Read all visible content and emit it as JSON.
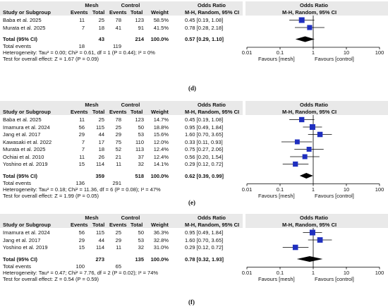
{
  "chart_data": [
    {
      "type": "forest",
      "panel_label": "(d)",
      "col_headers": {
        "group1": "Mesh",
        "group2": "Control",
        "odds_ratio": "Odds Ratio",
        "study": "Study or Subgroup",
        "events": "Events",
        "total": "Total",
        "weight": "Weight",
        "method": "M-H, Random, 95% CI"
      },
      "studies": [
        {
          "name": "Baba et al. 2025",
          "e1": "11",
          "t1": "25",
          "e2": "78",
          "t2": "123",
          "weight": "58.5%",
          "or_text": "0.45 [0.19, 1.08]",
          "or": 0.45,
          "lo": 0.19,
          "hi": 1.08,
          "w": 58.5
        },
        {
          "name": "Murata et al. 2025",
          "e1": "7",
          "t1": "18",
          "e2": "41",
          "t2": "91",
          "weight": "41.5%",
          "or_text": "0.78 [0.28, 2.18]",
          "or": 0.78,
          "lo": 0.28,
          "hi": 2.18,
          "w": 41.5
        }
      ],
      "total": {
        "label": "Total (95% CI)",
        "t1": "43",
        "t2": "214",
        "weight": "100.0%",
        "or_text": "0.57 [0.29, 1.10]",
        "or": 0.57,
        "lo": 0.29,
        "hi": 1.1
      },
      "total_events": {
        "label": "Total events",
        "e1": "18",
        "e2": "119"
      },
      "heterogeneity": "Heterogeneity: Tau² = 0.00; Chi² = 0.61, df = 1 (P = 0.44); I² = 0%",
      "overall_test": "Test for overall effect: Z = 1.67 (P = 0.09)",
      "x_scale": "log",
      "x_ticks": [
        "0.01",
        "0.1",
        "1",
        "10",
        "100"
      ],
      "favours_left": "Favours [mesh]",
      "favours_right": "Favours [control]"
    },
    {
      "type": "forest",
      "panel_label": "(e)",
      "col_headers": {
        "group1": "Mesh",
        "group2": "Control",
        "odds_ratio": "Odds Ratio",
        "study": "Study or Subgroup",
        "events": "Events",
        "total": "Total",
        "weight": "Weight",
        "method": "M-H, Random, 95% CI"
      },
      "studies": [
        {
          "name": "Baba et al. 2025",
          "e1": "11",
          "t1": "25",
          "e2": "78",
          "t2": "123",
          "weight": "14.7%",
          "or_text": "0.45 [0.19, 1.08]",
          "or": 0.45,
          "lo": 0.19,
          "hi": 1.08,
          "w": 14.7
        },
        {
          "name": "Imamura et al. 2024",
          "e1": "56",
          "t1": "115",
          "e2": "25",
          "t2": "50",
          "weight": "18.8%",
          "or_text": "0.95 [0.49, 1.84]",
          "or": 0.95,
          "lo": 0.49,
          "hi": 1.84,
          "w": 18.8
        },
        {
          "name": "Jang et al. 2017",
          "e1": "29",
          "t1": "44",
          "e2": "29",
          "t2": "53",
          "weight": "15.6%",
          "or_text": "1.60 [0.70, 3.65]",
          "or": 1.6,
          "lo": 0.7,
          "hi": 3.65,
          "w": 15.6
        },
        {
          "name": "Kawasaki et al. 2022",
          "e1": "7",
          "t1": "17",
          "e2": "75",
          "t2": "110",
          "weight": "12.0%",
          "or_text": "0.33 [0.11, 0.93]",
          "or": 0.33,
          "lo": 0.11,
          "hi": 0.93,
          "w": 12.0
        },
        {
          "name": "Murata et al. 2025",
          "e1": "7",
          "t1": "18",
          "e2": "52",
          "t2": "113",
          "weight": "12.4%",
          "or_text": "0.75 [0.27, 2.06]",
          "or": 0.75,
          "lo": 0.27,
          "hi": 2.06,
          "w": 12.4
        },
        {
          "name": "Ochiai et al. 2010",
          "e1": "11",
          "t1": "26",
          "e2": "21",
          "t2": "37",
          "weight": "12.4%",
          "or_text": "0.56 [0.20, 1.54]",
          "or": 0.56,
          "lo": 0.2,
          "hi": 1.54,
          "w": 12.4
        },
        {
          "name": "Yoshino et al. 2019",
          "e1": "15",
          "t1": "114",
          "e2": "11",
          "t2": "32",
          "weight": "14.1%",
          "or_text": "0.29 [0.12, 0.72]",
          "or": 0.29,
          "lo": 0.12,
          "hi": 0.72,
          "w": 14.1
        }
      ],
      "total": {
        "label": "Total (95% CI)",
        "t1": "359",
        "t2": "518",
        "weight": "100.0%",
        "or_text": "0.62 [0.39, 0.99]",
        "or": 0.62,
        "lo": 0.39,
        "hi": 0.99
      },
      "total_events": {
        "label": "Total events",
        "e1": "136",
        "e2": "291"
      },
      "heterogeneity": "Heterogeneity: Tau² = 0.18; Chi² = 11.36, df = 6 (P = 0.08); I² = 47%",
      "overall_test": "Test for overall effect: Z = 1.99 (P = 0.05)",
      "x_scale": "log",
      "x_ticks": [
        "0.01",
        "0.1",
        "1",
        "10",
        "100"
      ],
      "favours_left": "Favours [mesh]",
      "favours_right": "Favours [control]"
    },
    {
      "type": "forest",
      "panel_label": "(f)",
      "col_headers": {
        "group1": "Mesh",
        "group2": "Control",
        "odds_ratio": "Odds Ratio",
        "study": "Study or Subgroup",
        "events": "Events",
        "total": "Total",
        "weight": "Weight",
        "method": "M-H, Random, 95% CI"
      },
      "studies": [
        {
          "name": "Imamura et al. 2024",
          "e1": "56",
          "t1": "115",
          "e2": "25",
          "t2": "50",
          "weight": "36.3%",
          "or_text": "0.95 [0.49, 1.84]",
          "or": 0.95,
          "lo": 0.49,
          "hi": 1.84,
          "w": 36.3
        },
        {
          "name": "Jang et al. 2017",
          "e1": "29",
          "t1": "44",
          "e2": "29",
          "t2": "53",
          "weight": "32.8%",
          "or_text": "1.60 [0.70, 3.65]",
          "or": 1.6,
          "lo": 0.7,
          "hi": 3.65,
          "w": 32.8
        },
        {
          "name": "Yoshino et al. 2019",
          "e1": "15",
          "t1": "114",
          "e2": "11",
          "t2": "32",
          "weight": "31.0%",
          "or_text": "0.29 [0.12, 0.72]",
          "or": 0.29,
          "lo": 0.12,
          "hi": 0.72,
          "w": 31.0
        }
      ],
      "total": {
        "label": "Total (95% CI)",
        "t1": "273",
        "t2": "135",
        "weight": "100.0%",
        "or_text": "0.78 [0.32, 1.93]",
        "or": 0.78,
        "lo": 0.32,
        "hi": 1.93
      },
      "total_events": {
        "label": "Total events",
        "e1": "100",
        "e2": "65"
      },
      "heterogeneity": "Heterogeneity: Tau² = 0.47; Chi² = 7.76, df = 2 (P = 0.02); I² = 74%",
      "overall_test": "Test for overall effect: Z = 0.54 (P = 0.59)",
      "x_scale": "log",
      "x_ticks": [
        "0.01",
        "0.1",
        "1",
        "10",
        "100"
      ],
      "favours_left": "Favours [mesh]",
      "favours_right": "Favours [control]"
    }
  ],
  "colors": {
    "header_bg": "#e9e9e9",
    "marker": "#1f2fbf",
    "diamond": "#000000",
    "line": "#000000"
  }
}
